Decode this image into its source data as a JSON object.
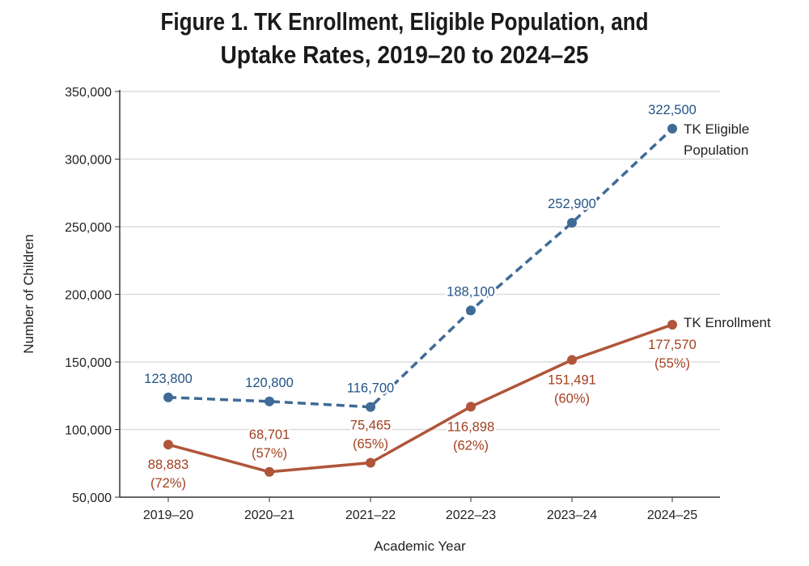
{
  "chart_data": {
    "type": "line",
    "title_lines": [
      "Figure 1. TK Enrollment, Eligible Population, and",
      "Uptake Rates, 2019–20 to 2024–25"
    ],
    "xlabel": "Academic Year",
    "ylabel": "Number of Children",
    "categories": [
      "2019–20",
      "2020–21",
      "2021–22",
      "2022–23",
      "2023–24",
      "2024–25"
    ],
    "ylim": [
      50000,
      350000
    ],
    "yticks": [
      50000,
      100000,
      150000,
      200000,
      250000,
      300000,
      350000
    ],
    "ytick_labels": [
      "50,000",
      "100,000",
      "150,000",
      "200,000",
      "250,000",
      "300,000",
      "350,000"
    ],
    "grid": "horizontal",
    "series": [
      {
        "name_lines": [
          "TK Eligible",
          "Population"
        ],
        "style": "dashed",
        "color": "#3f6b96",
        "label_color": "#245486",
        "values": [
          123800,
          120800,
          116700,
          188100,
          252900,
          322500
        ],
        "labels": [
          [
            "123,800"
          ],
          [
            "120,800"
          ],
          [
            "116,700"
          ],
          [
            "188,100"
          ],
          [
            "252,900"
          ],
          [
            "322,500"
          ]
        ],
        "label_pos": [
          "above",
          "above",
          "above",
          "above",
          "above",
          "above"
        ]
      },
      {
        "name_lines": [
          "TK Enrollment"
        ],
        "style": "solid",
        "color": "#b0553a",
        "label_color": "#a3401f",
        "values": [
          88883,
          68701,
          75465,
          116898,
          151491,
          177570
        ],
        "labels": [
          [
            "88,883",
            "(72%)"
          ],
          [
            "68,701",
            "(57%)"
          ],
          [
            "75,465",
            "(65%)"
          ],
          [
            "116,898",
            "(62%)"
          ],
          [
            "151,491",
            "(60%)"
          ],
          [
            "177,570",
            "(55%)"
          ]
        ],
        "label_pos": [
          "below",
          "above",
          "above",
          "below",
          "below",
          "below"
        ]
      }
    ]
  }
}
